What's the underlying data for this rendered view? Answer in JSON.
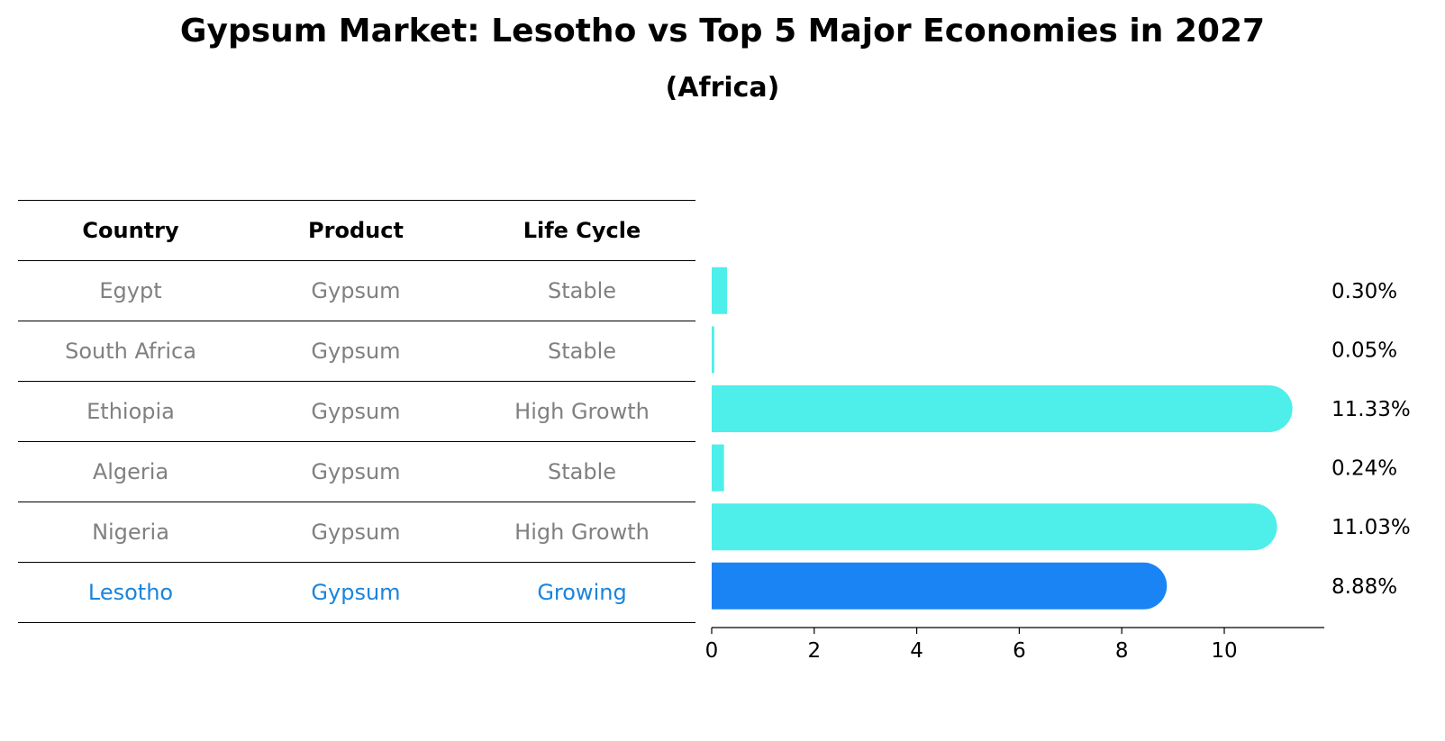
{
  "title": "Gypsum Market: Lesotho vs Top 5 Major Economies in 2027",
  "subtitle": "(Africa)",
  "table": {
    "headers": [
      "Country",
      "Product",
      "Life Cycle"
    ],
    "rows": [
      [
        "Egypt",
        "Gypsum",
        "Stable"
      ],
      [
        "South Africa",
        "Gypsum",
        "Stable"
      ],
      [
        "Ethiopia",
        "Gypsum",
        "High Growth"
      ],
      [
        "Algeria",
        "Gypsum",
        "Stable"
      ],
      [
        "Nigeria",
        "Gypsum",
        "High Growth"
      ],
      [
        "Lesotho",
        "Gypsum",
        "Growing"
      ]
    ]
  },
  "chart_data": {
    "type": "bar",
    "orientation": "horizontal",
    "categories": [
      "Egypt",
      "South Africa",
      "Ethiopia",
      "Algeria",
      "Nigeria",
      "Lesotho"
    ],
    "values": [
      0.3,
      0.05,
      11.33,
      0.24,
      11.03,
      8.88
    ],
    "value_labels": [
      "0.30%",
      "0.05%",
      "11.33%",
      "0.24%",
      "11.03%",
      "8.88%"
    ],
    "highlight": "Lesotho",
    "colors": {
      "default": "#4eeeea",
      "highlight": "#1a84f5"
    },
    "xticks": [
      0,
      2,
      4,
      6,
      8,
      10
    ],
    "xlim": [
      0,
      11.9
    ],
    "title": "Gypsum Market: Lesotho vs Top 5 Major Economies in 2027",
    "xlabel": "",
    "ylabel": ""
  }
}
